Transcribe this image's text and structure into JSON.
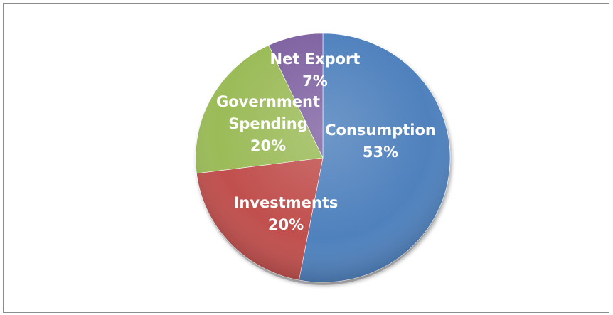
{
  "chart_data": {
    "type": "pie",
    "title": "",
    "slices": [
      {
        "label": "Consumption",
        "percent_label": "53%",
        "value": 53,
        "color": "#4f81bd"
      },
      {
        "label": "Investments",
        "percent_label": "20%",
        "value": 20,
        "color": "#c0504d"
      },
      {
        "label": "Government Spending",
        "percent_label": "20%",
        "value": 20,
        "color": "#9bbb59"
      },
      {
        "label": "Net Export",
        "percent_label": "7%",
        "value": 7,
        "color": "#8064a2"
      }
    ],
    "legend": "none",
    "start_angle_deg": 0,
    "direction": "clockwise"
  }
}
